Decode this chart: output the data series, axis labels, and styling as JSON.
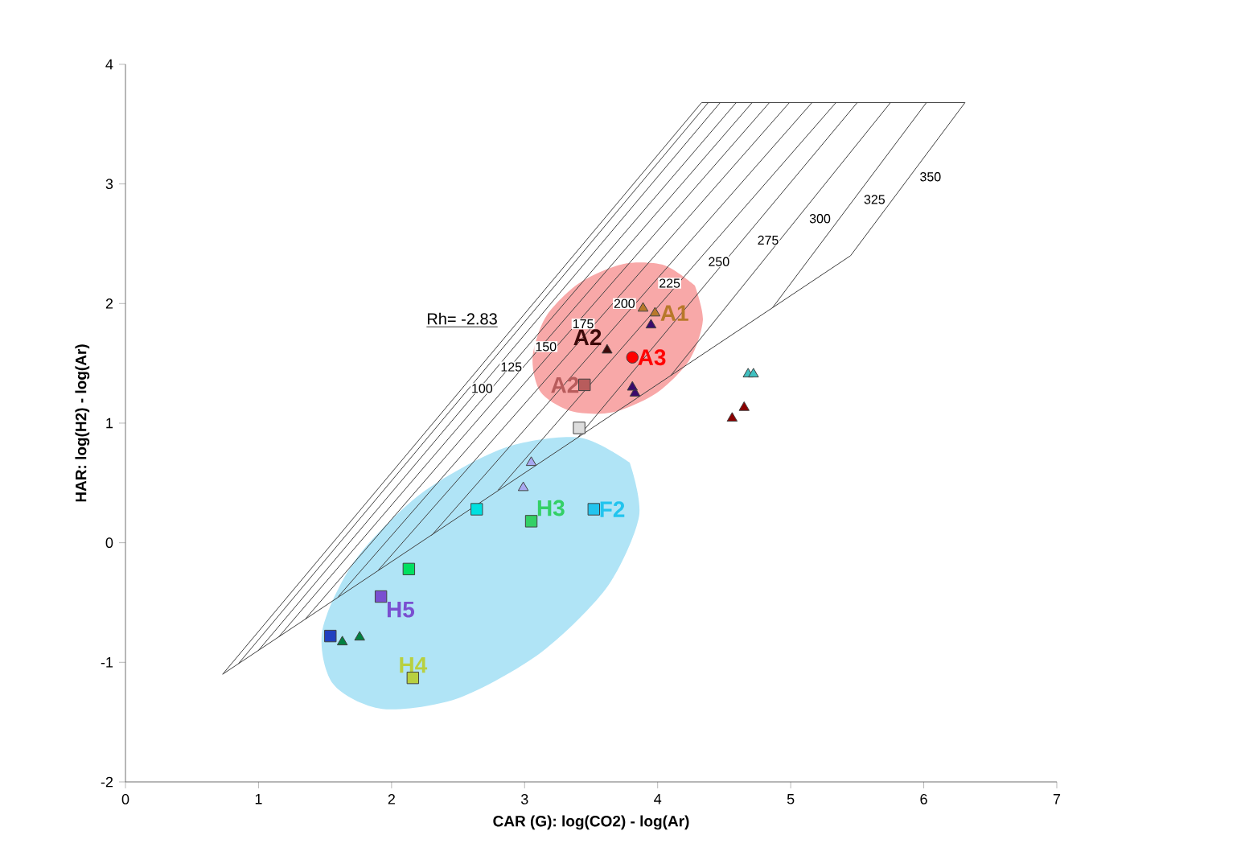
{
  "chart_data": {
    "type": "scatter",
    "xlabel": "CAR (G):  log(CO2) - log(Ar)",
    "ylabel": "HAR:  log(H2) - log(Ar)",
    "xlim": [
      0,
      7
    ],
    "ylim": [
      -2,
      4
    ],
    "xticks": [
      0,
      1,
      2,
      3,
      4,
      5,
      6,
      7
    ],
    "yticks": [
      -2,
      -1,
      0,
      1,
      2,
      3,
      4
    ],
    "annotations": [
      "Rh= -2.83",
      {
        "text": "100",
        "x": 2.68,
        "y": 1.29
      },
      {
        "text": "125",
        "x": 2.9,
        "y": 1.47
      },
      {
        "text": "150",
        "x": 3.16,
        "y": 1.64
      },
      {
        "text": "175",
        "x": 3.44,
        "y": 1.83
      },
      {
        "text": "200",
        "x": 3.75,
        "y": 2.0
      },
      {
        "text": "225",
        "x": 4.09,
        "y": 2.17
      },
      {
        "text": "250",
        "x": 4.46,
        "y": 2.35
      },
      {
        "text": "275",
        "x": 4.83,
        "y": 2.53
      },
      {
        "text": "300",
        "x": 5.22,
        "y": 2.71
      },
      {
        "text": "325",
        "x": 5.63,
        "y": 2.87
      },
      {
        "text": "350",
        "x": 6.05,
        "y": 3.06
      }
    ],
    "series": [
      {
        "type": "area",
        "color": "#f8a8a8",
        "x": [
          4.28,
          4.34,
          4.24,
          3.99,
          3.66,
          3.35,
          3.12,
          3.06,
          3.16,
          3.41,
          3.74,
          4.05
        ],
        "values": [
          2.15,
          1.86,
          1.53,
          1.25,
          1.09,
          1.1,
          1.26,
          1.55,
          1.89,
          2.17,
          2.33,
          2.32
        ]
      },
      {
        "type": "area",
        "color": "#b0e4f6",
        "x": [
          3.79,
          3.86,
          3.62,
          3.12,
          2.5,
          1.93,
          1.56,
          1.48,
          1.73,
          2.22,
          2.84,
          3.41
        ],
        "values": [
          0.67,
          0.22,
          -0.37,
          -0.92,
          -1.3,
          -1.39,
          -1.18,
          -0.73,
          -0.14,
          0.41,
          0.79,
          0.88
        ]
      },
      {
        "type": "line",
        "color": "#404040",
        "x": [
          0.73,
          4.33
        ],
        "values": [
          -1.1,
          3.68
        ]
      },
      {
        "type": "line",
        "color": "#404040",
        "x": [
          4.33,
          6.31
        ],
        "values": [
          3.68,
          3.68
        ]
      },
      {
        "type": "line",
        "color": "#404040",
        "x": [
          0.73,
          5.45,
          6.31
        ],
        "values": [
          -1.1,
          2.4,
          3.68
        ]
      },
      {
        "type": "line",
        "color": "#404040",
        "x": [
          0.85,
          4.38
        ],
        "values": [
          -1.01,
          3.68
        ]
      },
      {
        "type": "line",
        "color": "#404040",
        "x": [
          1.0,
          4.47
        ],
        "values": [
          -0.9,
          3.68
        ]
      },
      {
        "type": "line",
        "color": "#404040",
        "x": [
          1.15,
          4.59
        ],
        "values": [
          -0.79,
          3.68
        ]
      },
      {
        "type": "line",
        "color": "#404040",
        "x": [
          1.35,
          4.71
        ],
        "values": [
          -0.64,
          3.68
        ]
      },
      {
        "type": "line",
        "color": "#404040",
        "x": [
          1.6,
          4.84
        ],
        "values": [
          -0.45,
          3.68
        ]
      },
      {
        "type": "line",
        "color": "#404040",
        "x": [
          1.9,
          4.99
        ],
        "values": [
          -0.23,
          3.68
        ]
      },
      {
        "type": "line",
        "color": "#404040",
        "x": [
          2.3,
          5.16
        ],
        "values": [
          0.06,
          3.68
        ]
      },
      {
        "type": "line",
        "color": "#404040",
        "x": [
          2.8,
          5.34
        ],
        "values": [
          0.44,
          3.68
        ]
      },
      {
        "type": "line",
        "color": "#404040",
        "x": [
          3.4,
          5.5
        ],
        "values": [
          0.88,
          3.68
        ]
      },
      {
        "type": "line",
        "color": "#404040",
        "x": [
          4.1,
          5.75
        ],
        "values": [
          1.4,
          3.68
        ]
      },
      {
        "type": "line",
        "color": "#404040",
        "x": [
          4.86,
          6.02
        ],
        "values": [
          1.96,
          3.68
        ]
      },
      {
        "name": "A1",
        "color": "#b8782a",
        "marker": "triangle",
        "x": [
          3.89,
          3.98
        ],
        "values": [
          1.96,
          1.92
        ]
      },
      {
        "color": "#3b0a6b",
        "marker": "triangle",
        "x": [
          3.95,
          3.83,
          3.81
        ],
        "values": [
          1.82,
          1.25,
          1.3
        ]
      },
      {
        "name": "A2",
        "color": "#3d0a0a",
        "marker": "triangle",
        "x": [
          3.62
        ],
        "values": [
          1.61
        ]
      },
      {
        "name": "A3",
        "color": "#ff0000",
        "marker": "circle",
        "x": [
          3.81
        ],
        "values": [
          1.55
        ]
      },
      {
        "name": "A2",
        "color": "#b85c5c",
        "marker": "square",
        "x": [
          3.45
        ],
        "values": [
          1.32
        ]
      },
      {
        "color": "#dddddd",
        "marker": "square",
        "x": [
          3.41
        ],
        "values": [
          0.96
        ]
      },
      {
        "color": "#40c0c0",
        "marker": "triangle",
        "x": [
          4.68,
          4.72
        ],
        "values": [
          1.41,
          1.41
        ]
      },
      {
        "color": "#8b0000",
        "marker": "triangle",
        "x": [
          4.56,
          4.65
        ],
        "values": [
          1.04,
          1.13
        ]
      },
      {
        "color": "#a8a8f0",
        "marker": "triangle",
        "x": [
          3.05,
          2.99
        ],
        "values": [
          0.67,
          0.46
        ]
      },
      {
        "color": "#00e0e0",
        "marker": "square",
        "x": [
          2.64
        ],
        "values": [
          0.28
        ]
      },
      {
        "name": "H3",
        "color": "#33d066",
        "marker": "square",
        "x": [
          3.05
        ],
        "values": [
          0.18
        ]
      },
      {
        "name": "F2",
        "color": "#22c4ee",
        "marker": "square",
        "x": [
          3.52
        ],
        "values": [
          0.28
        ]
      },
      {
        "color": "#00e060",
        "marker": "square",
        "x": [
          2.13
        ],
        "values": [
          -0.22
        ]
      },
      {
        "name": "H5",
        "color": "#7a4fd0",
        "marker": "square",
        "x": [
          1.92
        ],
        "values": [
          -0.45
        ]
      },
      {
        "color": "#2040c0",
        "marker": "square",
        "x": [
          1.54
        ],
        "values": [
          -0.78
        ]
      },
      {
        "color": "#008040",
        "marker": "triangle",
        "x": [
          1.63,
          1.76
        ],
        "values": [
          -0.83,
          -0.79
        ]
      },
      {
        "name": "H4",
        "color": "#b8d040",
        "marker": "square",
        "x": [
          2.16
        ],
        "values": [
          -1.13
        ]
      }
    ]
  }
}
